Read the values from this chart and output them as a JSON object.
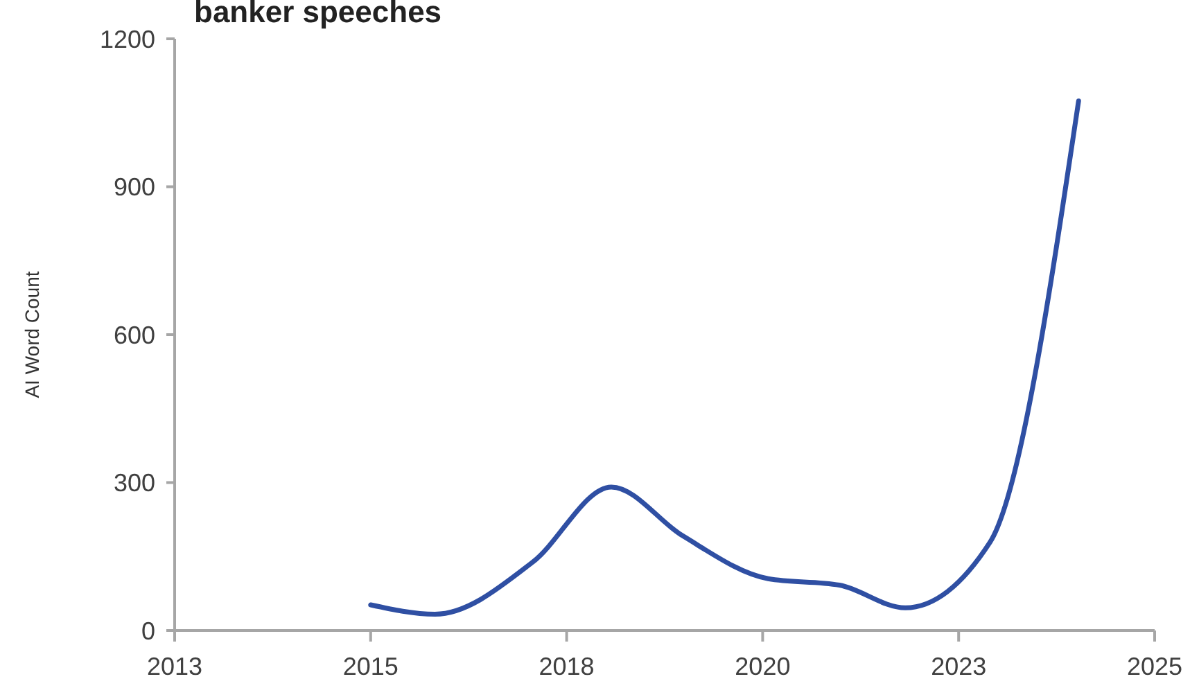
{
  "chart_data": {
    "type": "line",
    "title": "banker speeches",
    "ylabel": "AI Word Count",
    "x": [
      2015.5,
      2016.32,
      2017.57,
      2018.57,
      2019.48,
      2020.57,
      2021.48,
      2022.32,
      2023.4,
      2024.53
    ],
    "series": [
      {
        "color": "#2f4fa3",
        "values": [
          52,
          33,
          139,
          291,
          192,
          105,
          92,
          46,
          179,
          1074
        ]
      }
    ],
    "xlim": [
      2013,
      2025.5
    ],
    "xticks": [
      {
        "value": 2013,
        "label": "2013"
      },
      {
        "value": 2015.5,
        "label": "2015"
      },
      {
        "value": 2018,
        "label": "2018"
      },
      {
        "value": 2020.5,
        "label": "2020"
      },
      {
        "value": 2023,
        "label": "2023"
      },
      {
        "value": 2025.5,
        "label": "2025"
      }
    ],
    "ylim": [
      0,
      1200
    ],
    "yticks": [
      0,
      300,
      600,
      900,
      1200
    ],
    "grid": false,
    "marker": "none",
    "line_style": "solid"
  }
}
